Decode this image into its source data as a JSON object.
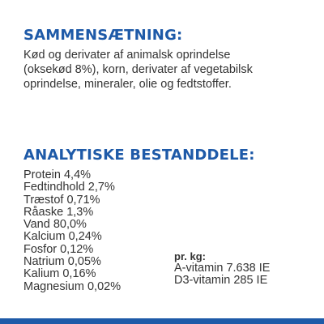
{
  "composition": {
    "heading": "SAMMENSÆTNING:",
    "lines": [
      "Kød og derivater af animalsk oprindelse",
      "(oksekød 8%), korn, derivater af vegetabilsk",
      "oprindelse, mineraler, olie og fedtstoffer."
    ]
  },
  "analytic": {
    "heading": "ANALYTISKE BESTANDDELE:",
    "items": [
      "Protein 4,4%",
      "Fedtindhold 2,7%",
      "Træstof 0,71%",
      "Råaske 1,3%",
      "Vand 80,0%",
      "Kalcium 0,24%",
      "Fosfor 0,12%",
      "Natrium 0,05%",
      "Kalium 0,16%",
      "Magnesium 0,02%"
    ]
  },
  "per_kg": {
    "label": "pr. kg:",
    "items": [
      "A-vitamin 7.638 IE",
      "D3-vitamin 285 IE"
    ]
  },
  "colors": {
    "heading": "#1e5aa8",
    "text": "#333333",
    "bar": "#1e5aa8"
  }
}
